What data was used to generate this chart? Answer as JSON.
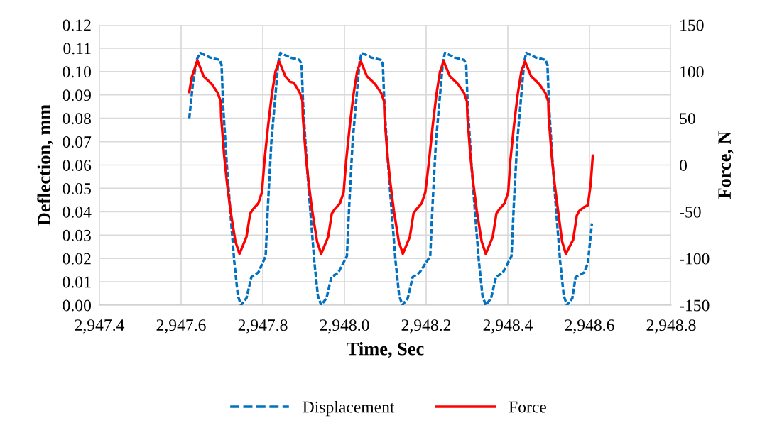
{
  "chart_data": {
    "type": "line",
    "xlabel": "Time, Sec",
    "ylabel": "Deflection, mm",
    "y2label": "Force, N",
    "xlim": [
      2947.4,
      2948.8
    ],
    "xticks": [
      {
        "value": 2947.4,
        "label": "2,947.4"
      },
      {
        "value": 2947.6,
        "label": "2,947.6"
      },
      {
        "value": 2947.8,
        "label": "2,947.8"
      },
      {
        "value": 2948.0,
        "label": "2,948.0"
      },
      {
        "value": 2948.2,
        "label": "2,948.2"
      },
      {
        "value": 2948.4,
        "label": "2,948.4"
      },
      {
        "value": 2948.6,
        "label": "2,948.6"
      },
      {
        "value": 2948.8,
        "label": "2,948.8"
      }
    ],
    "ylim": [
      0,
      0.12
    ],
    "yticks": [
      {
        "value": 0,
        "label": "0.00"
      },
      {
        "value": 0.01,
        "label": "0.01"
      },
      {
        "value": 0.02,
        "label": "0.02"
      },
      {
        "value": 0.03,
        "label": "0.03"
      },
      {
        "value": 0.04,
        "label": "0.04"
      },
      {
        "value": 0.05,
        "label": "0.05"
      },
      {
        "value": 0.06,
        "label": "0.06"
      },
      {
        "value": 0.07,
        "label": "0.07"
      },
      {
        "value": 0.08,
        "label": "0.08"
      },
      {
        "value": 0.09,
        "label": "0.09"
      },
      {
        "value": 0.1,
        "label": "0.10"
      },
      {
        "value": 0.11,
        "label": "0.11"
      },
      {
        "value": 0.12,
        "label": "0.12"
      }
    ],
    "y2lim": [
      -150,
      150
    ],
    "y2ticks": [
      -150,
      -100,
      -50,
      0,
      50,
      100,
      150
    ],
    "grid": true,
    "legend": "bottom",
    "marker": "none",
    "series": [
      {
        "name": "Displacement",
        "color": "#0070c0",
        "axis": "y",
        "line_style": "dashed",
        "x": [
          2947.62,
          2947.629,
          2947.638,
          2947.647,
          2947.659,
          2947.671,
          2947.694,
          2947.699,
          2947.703,
          2947.712,
          2947.721,
          2947.73,
          2947.739,
          2947.747,
          2947.76,
          2947.772,
          2947.789,
          2947.807,
          2947.813,
          2947.821,
          2947.831,
          2947.838,
          2947.843,
          2947.855,
          2947.867,
          2947.89,
          2947.895,
          2947.899,
          2947.908,
          2947.917,
          2947.926,
          2947.935,
          2947.943,
          2947.956,
          2947.968,
          2947.985,
          2948.006,
          2948.012,
          2948.02,
          2948.03,
          2948.037,
          2948.042,
          2948.054,
          2948.066,
          2948.089,
          2948.094,
          2948.098,
          2948.107,
          2948.116,
          2948.125,
          2948.134,
          2948.142,
          2948.155,
          2948.167,
          2948.184,
          2948.21,
          2948.216,
          2948.224,
          2948.234,
          2948.241,
          2948.246,
          2948.258,
          2948.27,
          2948.293,
          2948.298,
          2948.302,
          2948.311,
          2948.32,
          2948.329,
          2948.338,
          2948.346,
          2948.359,
          2948.371,
          2948.388,
          2948.409,
          2948.415,
          2948.423,
          2948.433,
          2948.44,
          2948.445,
          2948.457,
          2948.469,
          2948.492,
          2948.497,
          2948.501,
          2948.51,
          2948.519,
          2948.528,
          2948.537,
          2948.545,
          2948.558,
          2948.566,
          2948.587,
          2948.596,
          2948.606
        ],
        "values": [
          0.08,
          0.095,
          0.105,
          0.108,
          0.107,
          0.106,
          0.105,
          0.103,
          0.085,
          0.06,
          0.039,
          0.019,
          0.004,
          0.0,
          0.003,
          0.012,
          0.014,
          0.021,
          0.044,
          0.07,
          0.09,
          0.104,
          0.108,
          0.107,
          0.106,
          0.105,
          0.103,
          0.085,
          0.06,
          0.039,
          0.019,
          0.004,
          0.0,
          0.003,
          0.012,
          0.014,
          0.021,
          0.044,
          0.07,
          0.09,
          0.104,
          0.108,
          0.107,
          0.106,
          0.105,
          0.103,
          0.085,
          0.06,
          0.039,
          0.019,
          0.004,
          0.0,
          0.003,
          0.012,
          0.014,
          0.021,
          0.044,
          0.07,
          0.09,
          0.104,
          0.108,
          0.107,
          0.106,
          0.105,
          0.103,
          0.085,
          0.06,
          0.039,
          0.019,
          0.004,
          0.0,
          0.003,
          0.012,
          0.014,
          0.021,
          0.044,
          0.07,
          0.09,
          0.104,
          0.108,
          0.107,
          0.106,
          0.105,
          0.103,
          0.085,
          0.06,
          0.039,
          0.019,
          0.004,
          0.0,
          0.003,
          0.012,
          0.014,
          0.018,
          0.035
        ]
      },
      {
        "name": "Force",
        "color": "#ff0000",
        "axis": "y2",
        "line_style": "solid",
        "x": [
          2947.62,
          2947.626,
          2947.64,
          2947.655,
          2947.667,
          2947.676,
          2947.69,
          2947.697,
          2947.698,
          2947.705,
          2947.712,
          2947.721,
          2947.733,
          2947.743,
          2947.76,
          2947.769,
          2947.775,
          2947.789,
          2947.798,
          2947.804,
          2947.813,
          2947.822,
          2947.831,
          2947.84,
          2947.855,
          2947.867,
          2947.876,
          2947.89,
          2947.897,
          2947.898,
          2947.905,
          2947.912,
          2947.921,
          2947.933,
          2947.943,
          2947.96,
          2947.969,
          2947.975,
          2947.989,
          2947.998,
          2948.004,
          2948.013,
          2948.022,
          2948.031,
          2948.04,
          2948.055,
          2948.067,
          2948.076,
          2948.09,
          2948.097,
          2948.098,
          2948.105,
          2948.112,
          2948.121,
          2948.133,
          2948.143,
          2948.16,
          2948.169,
          2948.175,
          2948.189,
          2948.198,
          2948.207,
          2948.216,
          2948.225,
          2948.234,
          2948.243,
          2948.258,
          2948.27,
          2948.279,
          2948.293,
          2948.3,
          2948.301,
          2948.308,
          2948.315,
          2948.324,
          2948.336,
          2948.346,
          2948.363,
          2948.372,
          2948.378,
          2948.392,
          2948.401,
          2948.406,
          2948.415,
          2948.424,
          2948.433,
          2948.442,
          2948.457,
          2948.469,
          2948.478,
          2948.492,
          2948.499,
          2948.5,
          2948.507,
          2948.514,
          2948.523,
          2948.533,
          2948.542,
          2948.56,
          2948.569,
          2948.575,
          2948.587,
          2948.596,
          2948.603,
          2948.608
        ],
        "values": [
          78,
          94,
          112,
          95,
          90,
          86,
          77,
          68,
          52,
          12,
          -18,
          -49,
          -82,
          -95,
          -77,
          -52,
          -48,
          -41,
          -29,
          4,
          42,
          75,
          100,
          111,
          95,
          89,
          88,
          78,
          69,
          52,
          12,
          -18,
          -49,
          -82,
          -95,
          -77,
          -52,
          -48,
          -41,
          -29,
          4,
          42,
          75,
          100,
          111,
          95,
          90,
          86,
          77,
          68,
          52,
          12,
          -18,
          -49,
          -82,
          -95,
          -77,
          -52,
          -48,
          -41,
          -29,
          4,
          42,
          75,
          100,
          111,
          95,
          90,
          86,
          77,
          68,
          52,
          12,
          -18,
          -49,
          -82,
          -95,
          -77,
          -52,
          -48,
          -41,
          -29,
          4,
          42,
          75,
          100,
          111,
          95,
          90,
          86,
          77,
          68,
          52,
          12,
          -18,
          -49,
          -82,
          -95,
          -80,
          -54,
          -49,
          -45,
          -43,
          -20,
          10
        ]
      }
    ]
  }
}
